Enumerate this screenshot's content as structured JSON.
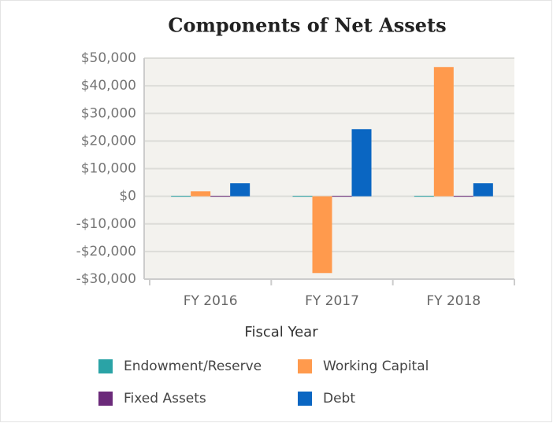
{
  "chart_data": {
    "type": "bar",
    "title": "Components of Net Assets",
    "x_label": "Fiscal Year",
    "categories": [
      "FY 2016",
      "FY 2017",
      "FY 2018"
    ],
    "series": [
      {
        "name": "Endowment/Reserve",
        "color": "#2aa3a6",
        "values": [
          0,
          0,
          0
        ]
      },
      {
        "name": "Working Capital",
        "color": "#ff9a4d",
        "values": [
          1800,
          -27800,
          46800
        ]
      },
      {
        "name": "Fixed Assets",
        "color": "#6b2a7a",
        "values": [
          0,
          0,
          0
        ]
      },
      {
        "name": "Debt",
        "color": "#0a66c2",
        "values": [
          4700,
          24300,
          4700
        ]
      }
    ],
    "ylim": [
      -30000,
      50000
    ],
    "yticks": [
      {
        "value": -30000,
        "label": "-$30,000"
      },
      {
        "value": -20000,
        "label": "-$20,000"
      },
      {
        "value": -10000,
        "label": "-$10,000"
      },
      {
        "value": 0,
        "label": "$0"
      },
      {
        "value": 10000,
        "label": "$10,000"
      },
      {
        "value": 20000,
        "label": "$20,000"
      },
      {
        "value": 30000,
        "label": "$30,000"
      },
      {
        "value": 40000,
        "label": "$40,000"
      },
      {
        "value": 50000,
        "label": "$50,000"
      }
    ],
    "grid": true,
    "legend": "bottom"
  }
}
